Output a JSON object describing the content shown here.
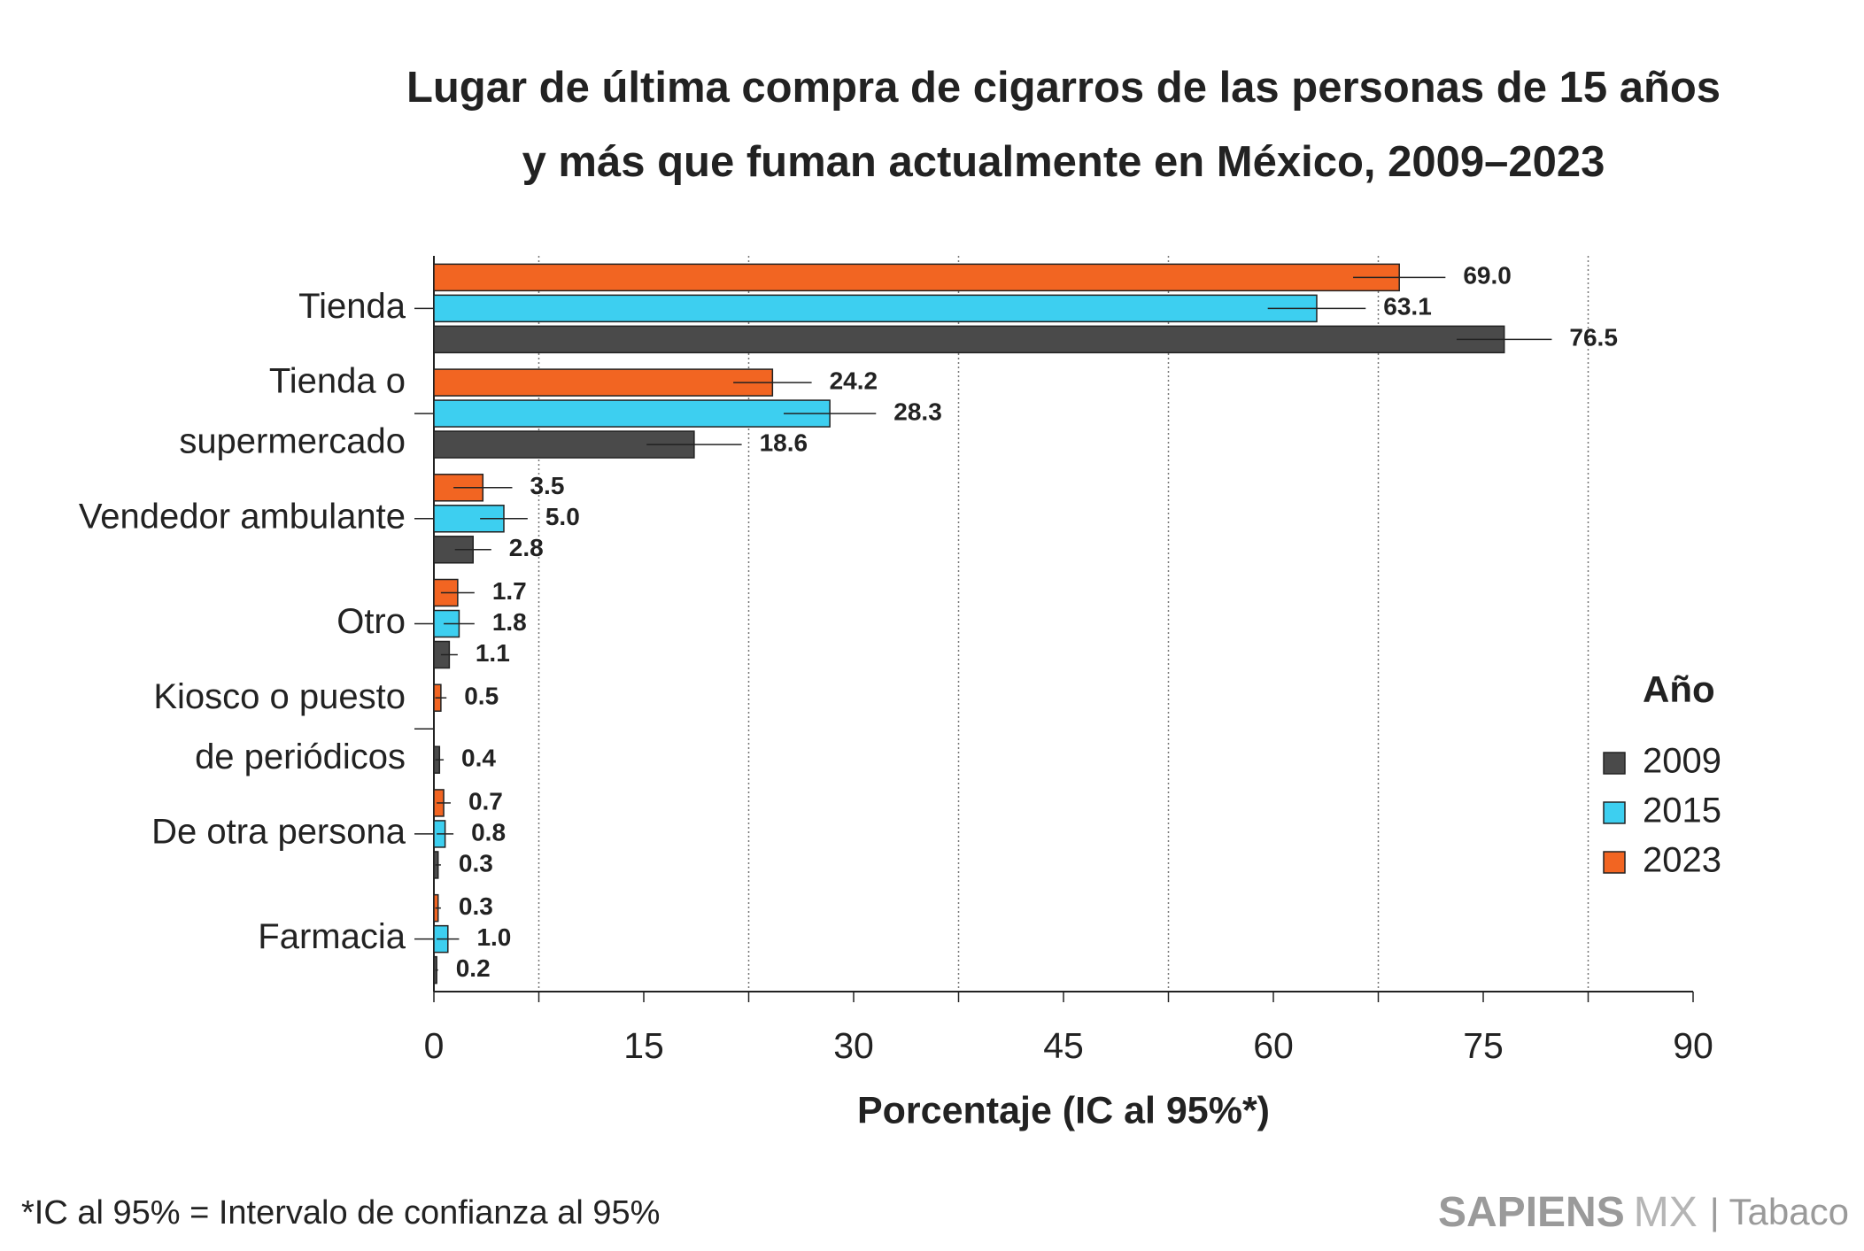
{
  "chart_data": {
    "type": "bar",
    "orientation": "horizontal",
    "title": [
      "Lugar de última compra de cigarros de las personas de 15 años",
      "y más que fuman actualmente en México, 2009–2023"
    ],
    "categories": [
      [
        "Tienda"
      ],
      [
        "Tienda o",
        "supermercado"
      ],
      [
        "Vendedor ambulante"
      ],
      [
        "Otro"
      ],
      [
        "Kiosco o puesto",
        "de periódicos"
      ],
      [
        "De otra persona"
      ],
      [
        "Farmacia"
      ]
    ],
    "series": [
      {
        "name": "2009",
        "color": "#4a4a4a",
        "values": [
          76.5,
          18.6,
          2.8,
          1.1,
          0.4,
          0.3,
          0.2
        ],
        "value_labels": [
          "76.5",
          "18.6",
          "2.8",
          "1.1",
          "0.4",
          "0.3",
          "0.2"
        ],
        "errors": [
          3.4,
          3.4,
          1.3,
          0.6,
          0.3,
          0.2,
          0.1
        ]
      },
      {
        "name": "2015",
        "color": "#3dcff0",
        "values": [
          63.1,
          28.3,
          5.0,
          1.8,
          null,
          0.8,
          1.0
        ],
        "value_labels": [
          "63.1",
          "28.3",
          "5.0",
          "1.8",
          null,
          "0.8",
          "1.0"
        ],
        "errors": [
          3.5,
          3.3,
          1.7,
          1.1,
          null,
          0.6,
          0.8
        ]
      },
      {
        "name": "2023",
        "color": "#f26522",
        "values": [
          69.0,
          24.2,
          3.5,
          1.7,
          0.5,
          0.7,
          0.3
        ],
        "value_labels": [
          "69.0",
          "24.2",
          "3.5",
          "1.7",
          "0.5",
          "0.7",
          "0.3"
        ],
        "errors": [
          3.3,
          2.8,
          2.1,
          1.2,
          0.4,
          0.5,
          0.2
        ]
      }
    ],
    "xlim": [
      0,
      90
    ],
    "xticks": [
      0,
      15,
      30,
      45,
      60,
      75,
      90
    ],
    "grid_xticks": [
      7.5,
      22.5,
      37.5,
      52.5,
      67.5,
      82.5
    ],
    "grid": true,
    "x_label": "Porcentaje (IC al 95%*)",
    "legend_title": "Año",
    "legend_position": "right",
    "footnote": "*IC al 95% = Intervalo de confianza al 95%",
    "brand": [
      "SAPIENS",
      "MX",
      "| Tabaco"
    ]
  }
}
